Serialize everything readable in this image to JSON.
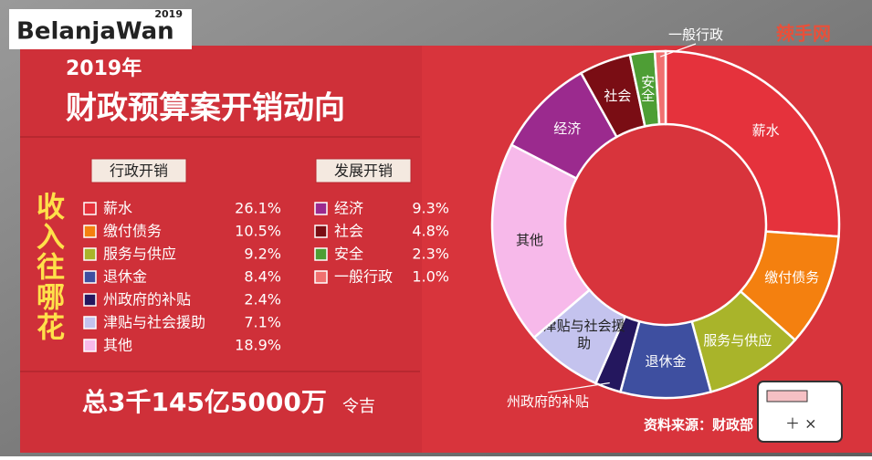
{
  "brand": {
    "name": "BelanjaWan",
    "year": "2019"
  },
  "site": "辣手网",
  "side_label": "收入往哪花",
  "total": {
    "amount": "总3千145亿5000万",
    "currency": "令吉"
  },
  "source": "资料来源：财政部",
  "chart_data": {
    "type": "donut",
    "subtitle": "2019年",
    "title": "财政预算案开销动向",
    "groups": [
      {
        "name": "行政开销",
        "categories": [
          "薪水",
          "缴付债务",
          "服务与供应",
          "退休金",
          "州政府的补贴",
          "津贴与社会援助",
          "其他"
        ],
        "values": [
          26.1,
          10.5,
          9.2,
          8.4,
          2.4,
          7.1,
          18.9
        ],
        "value_labels": [
          "26.1%",
          "10.5%",
          "9.2%",
          "8.4%",
          "2.4%",
          "7.1%",
          "18.9%"
        ],
        "colors": [
          "#e5323c",
          "#f4800f",
          "#a9b42a",
          "#3e4fa0",
          "#24175e",
          "#c4c3ee",
          "#f7b9ea"
        ]
      },
      {
        "name": "发展开销",
        "categories": [
          "经济",
          "社会",
          "安全",
          "一般行政"
        ],
        "values": [
          9.3,
          4.8,
          2.3,
          1.0
        ],
        "value_labels": [
          "9.3%",
          "4.8%",
          "2.3%",
          "1.0%"
        ],
        "colors": [
          "#9b2a8e",
          "#7a0d14",
          "#4e9e35",
          "#f07070"
        ]
      }
    ]
  }
}
